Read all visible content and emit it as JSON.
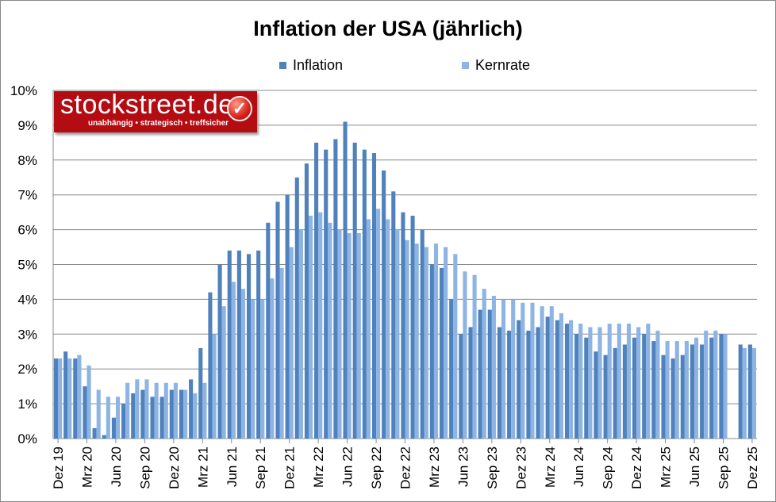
{
  "logo": {
    "text": "stockstreet.de",
    "tagline": "unabhängig • strategisch • treffsicher"
  },
  "chart_data": {
    "type": "bar",
    "title": "Inflation der USA (jährlich)",
    "xlabel": "",
    "ylabel": "",
    "ylim": [
      0,
      10
    ],
    "yticks": [
      "0%",
      "1%",
      "2%",
      "3%",
      "4%",
      "5%",
      "6%",
      "7%",
      "8%",
      "9%",
      "10%"
    ],
    "grid": true,
    "legend": "top",
    "categories": [
      "Dez 19",
      "Jan 20",
      "Feb 20",
      "Mrz 20",
      "Apr 20",
      "Mai 20",
      "Jun 20",
      "Jul 20",
      "Aug 20",
      "Sep 20",
      "Okt 20",
      "Nov 20",
      "Dez 20",
      "Jan 21",
      "Feb 21",
      "Mrz 21",
      "Apr 21",
      "Mai 21",
      "Jun 21",
      "Jul 21",
      "Aug 21",
      "Sep 21",
      "Okt 21",
      "Nov 21",
      "Dez 21",
      "Jan 22",
      "Feb 22",
      "Mrz 22",
      "Apr 22",
      "Mai 22",
      "Jun 22",
      "Jul 22",
      "Aug 22",
      "Sep 22",
      "Okt 22",
      "Nov 22",
      "Dez 22",
      "Jan 23",
      "Feb 23",
      "Mrz 23",
      "Apr 23",
      "Mai 23",
      "Jun 23",
      "Jul 23",
      "Aug 23",
      "Sep 23",
      "Okt 23",
      "Nov 23",
      "Dez 23",
      "Jan 24",
      "Feb 24",
      "Mrz 24",
      "Apr 24",
      "Mai 24",
      "Jun 24",
      "Jul 24",
      "Aug 24",
      "Sep 24",
      "Okt 24",
      "Nov 24",
      "Dez 24",
      "Jan 25",
      "Feb 25",
      "Mrz 25",
      "Apr 25",
      "Mai 25",
      "Jun 25",
      "Jul 25",
      "Aug 25",
      "Sep 25",
      "Okt 25",
      "Nov 25",
      "Dez 25"
    ],
    "xtick_labels": [
      "Dez 19",
      "Mrz 20",
      "Jun 20",
      "Sep 20",
      "Dez 20",
      "Mrz 21",
      "Jun 21",
      "Sep 21",
      "Dez 21",
      "Mrz 22",
      "Jun 22",
      "Sep 22",
      "Dez 22",
      "Mrz 23",
      "Jun 23",
      "Sep 23",
      "Dez 23",
      "Mrz 24",
      "Jun 24",
      "Sep 24",
      "Dez 24",
      "Mrz 25",
      "Jun 25",
      "Sep 25",
      "Dez 25"
    ],
    "series": [
      {
        "name": "Inflation",
        "color": "#4f81bd",
        "values": [
          2.3,
          2.5,
          2.3,
          1.5,
          0.3,
          0.1,
          0.6,
          1.0,
          1.3,
          1.4,
          1.2,
          1.2,
          1.4,
          1.4,
          1.7,
          2.6,
          4.2,
          5.0,
          5.4,
          5.4,
          5.3,
          5.4,
          6.2,
          6.8,
          7.0,
          7.5,
          7.9,
          8.5,
          8.3,
          8.6,
          9.1,
          8.5,
          8.3,
          8.2,
          7.7,
          7.1,
          6.5,
          6.4,
          6.0,
          5.0,
          4.9,
          4.0,
          3.0,
          3.2,
          3.7,
          3.7,
          3.2,
          3.1,
          3.4,
          3.1,
          3.2,
          3.5,
          3.4,
          3.3,
          3.0,
          2.9,
          2.5,
          2.4,
          2.6,
          2.7,
          2.9,
          3.0,
          2.8,
          2.4,
          2.3,
          2.4,
          2.7,
          2.7,
          2.9,
          3.0,
          null,
          2.7,
          2.7
        ]
      },
      {
        "name": "Kernrate",
        "color": "#8db4e2",
        "values": [
          2.3,
          2.3,
          2.4,
          2.1,
          1.4,
          1.2,
          1.2,
          1.6,
          1.7,
          1.7,
          1.6,
          1.6,
          1.6,
          1.4,
          1.3,
          1.6,
          3.0,
          3.8,
          4.5,
          4.3,
          4.0,
          4.0,
          4.6,
          4.9,
          5.5,
          6.0,
          6.4,
          6.5,
          6.2,
          6.0,
          5.9,
          5.9,
          6.3,
          6.6,
          6.3,
          6.0,
          5.7,
          5.6,
          5.5,
          5.6,
          5.5,
          5.3,
          4.8,
          4.7,
          4.3,
          4.1,
          4.0,
          4.0,
          3.9,
          3.9,
          3.8,
          3.8,
          3.6,
          3.4,
          3.3,
          3.2,
          3.2,
          3.3,
          3.3,
          3.3,
          3.2,
          3.3,
          3.1,
          2.8,
          2.8,
          2.8,
          2.9,
          3.1,
          3.1,
          3.0,
          null,
          2.6,
          2.6
        ]
      }
    ]
  }
}
